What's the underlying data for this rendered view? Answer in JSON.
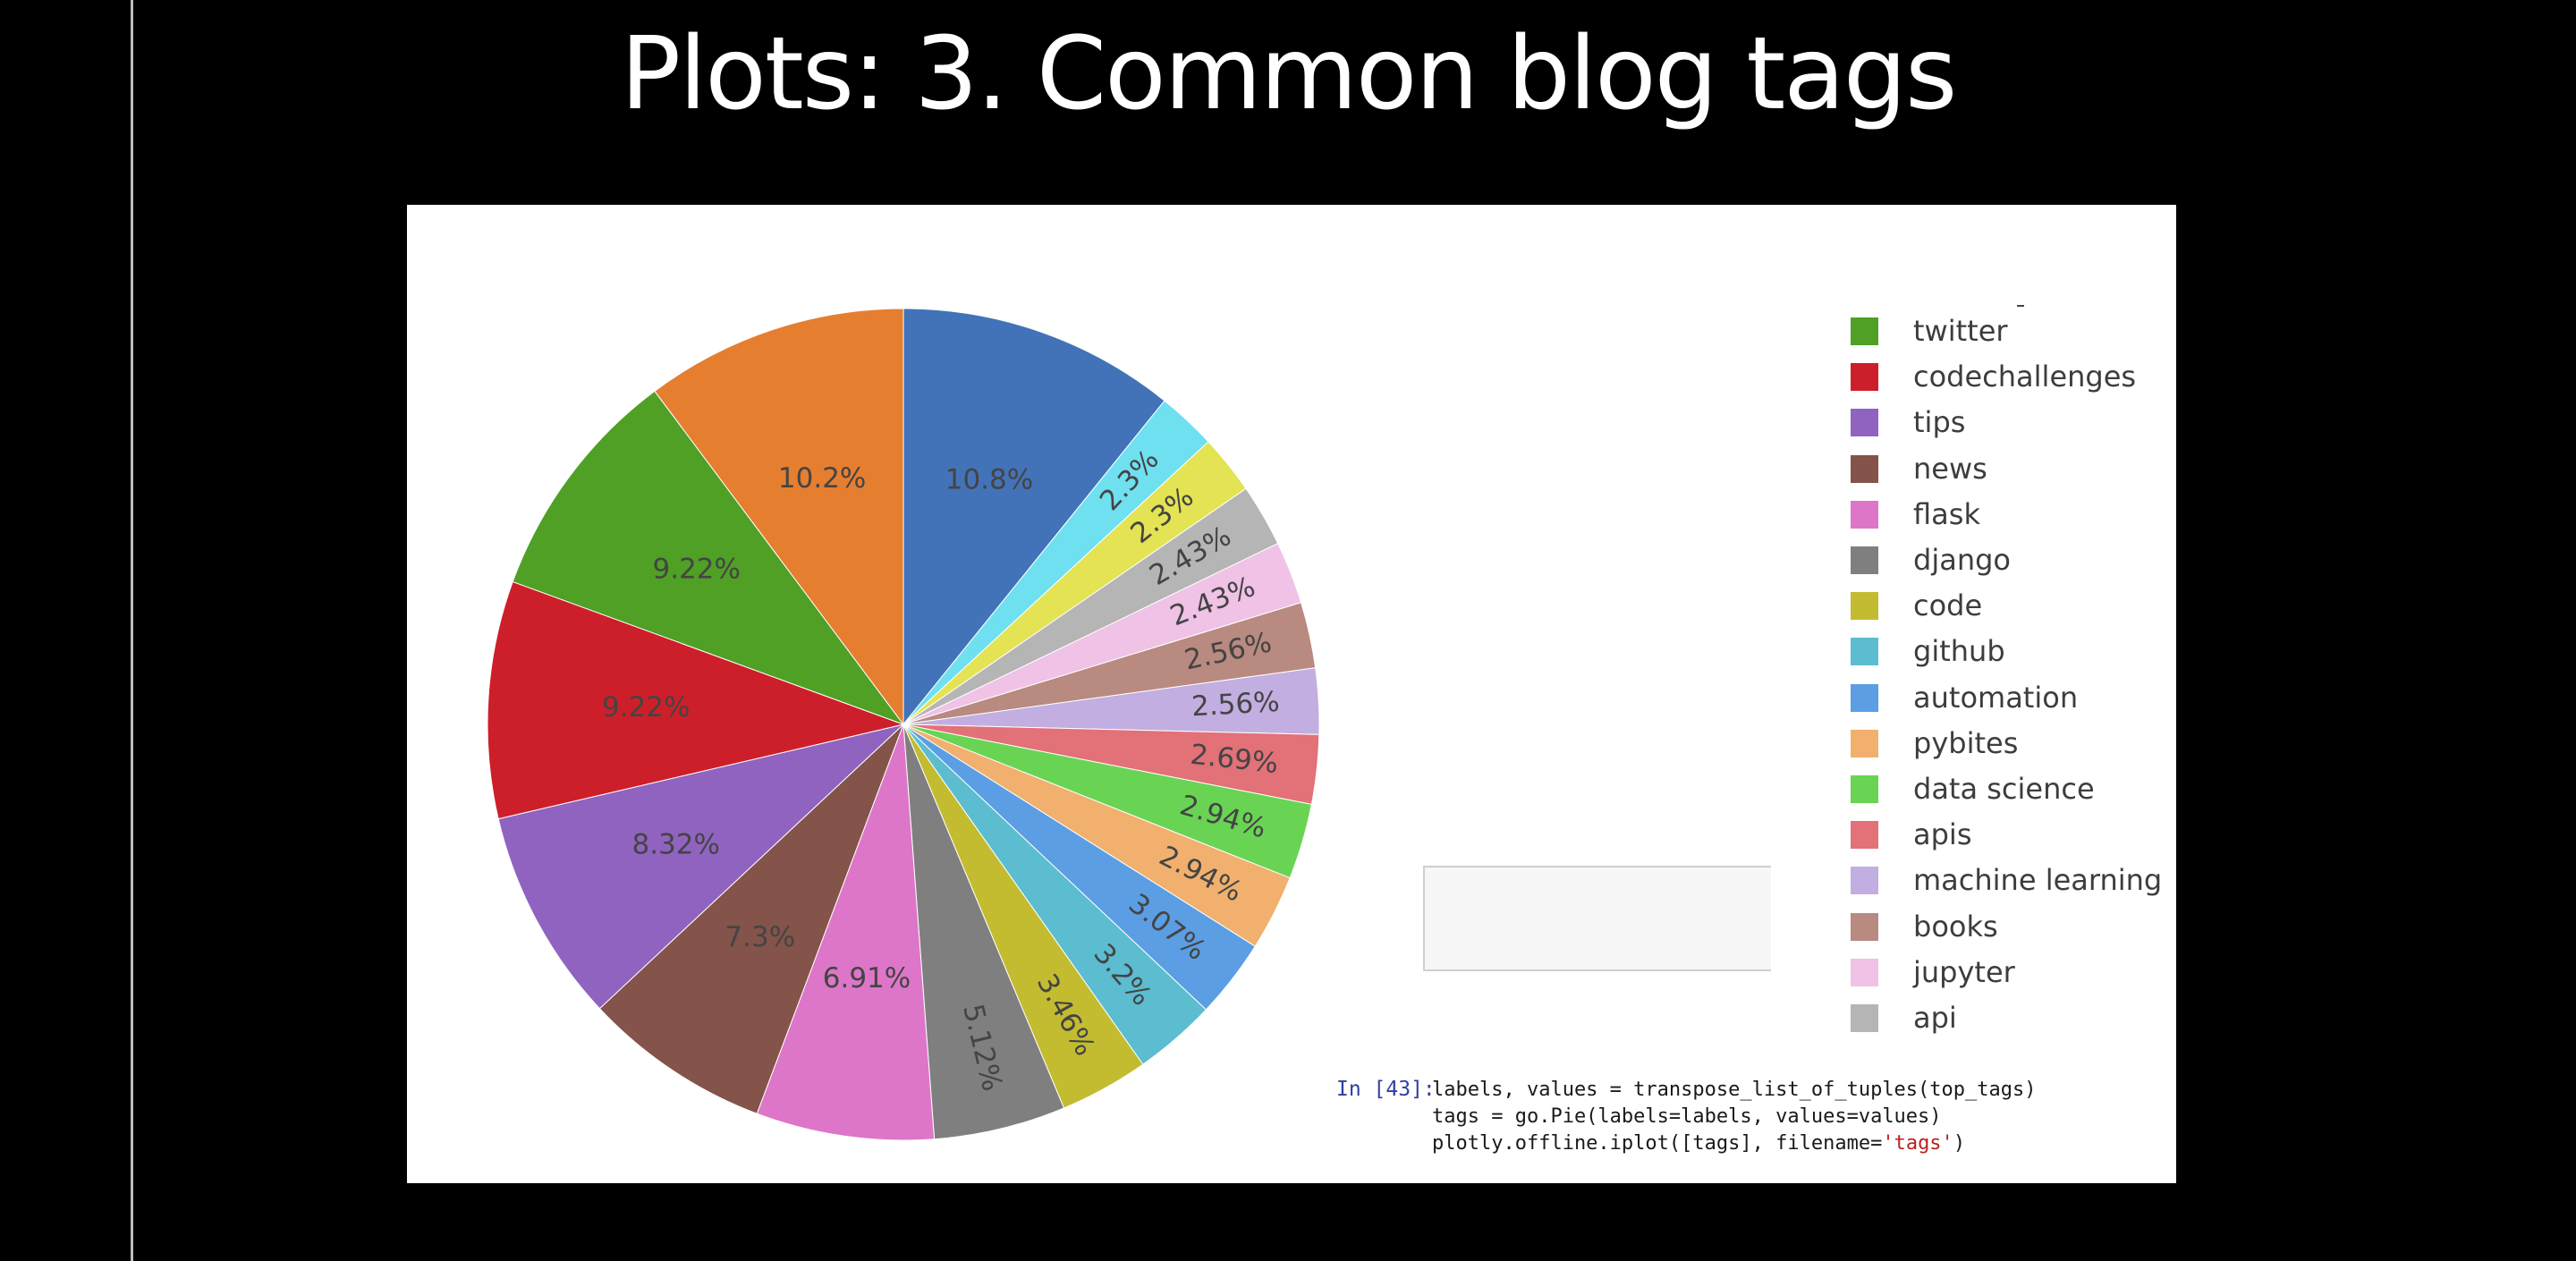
{
  "slide": {
    "title": "Plots: 3. Common blog tags"
  },
  "chart_data": {
    "type": "pie",
    "legend_position": "right",
    "slices": [
      {
        "label": "",
        "value": 10.8,
        "display": "10.8%",
        "color": "#4273b8"
      },
      {
        "label": "",
        "value": 2.3,
        "display": "2.3%",
        "color": "#6fe0ef"
      },
      {
        "label": "",
        "value": 2.3,
        "display": "2.3%",
        "color": "#e3e354"
      },
      {
        "label": "api",
        "value": 2.43,
        "display": "2.43%",
        "color": "#b5b5b5"
      },
      {
        "label": "jupyter",
        "value": 2.43,
        "display": "2.43%",
        "color": "#efc2e6"
      },
      {
        "label": "books",
        "value": 2.56,
        "display": "2.56%",
        "color": "#b88a80"
      },
      {
        "label": "machine learning",
        "value": 2.56,
        "display": "2.56%",
        "color": "#c2aee0"
      },
      {
        "label": "apis",
        "value": 2.69,
        "display": "2.69%",
        "color": "#e27178"
      },
      {
        "label": "data science",
        "value": 2.94,
        "display": "2.94%",
        "color": "#69d453"
      },
      {
        "label": "pybites",
        "value": 2.94,
        "display": "2.94%",
        "color": "#f1b06e"
      },
      {
        "label": "automation",
        "value": 3.07,
        "display": "3.07%",
        "color": "#5b9ee3"
      },
      {
        "label": "github",
        "value": 3.2,
        "display": "3.2%",
        "color": "#5bbdcf"
      },
      {
        "label": "code",
        "value": 3.46,
        "display": "3.46%",
        "color": "#c3bc31"
      },
      {
        "label": "django",
        "value": 5.12,
        "display": "5.12%",
        "color": "#7f7f7f"
      },
      {
        "label": "flask",
        "value": 6.91,
        "display": "6.91%",
        "color": "#dd76c8"
      },
      {
        "label": "news",
        "value": 7.3,
        "display": "7.3%",
        "color": "#84534a"
      },
      {
        "label": "tips",
        "value": 8.32,
        "display": "8.32%",
        "color": "#9063c0"
      },
      {
        "label": "codechallenges",
        "value": 9.22,
        "display": "9.22%",
        "color": "#cd1f2a"
      },
      {
        "label": "twitter",
        "value": 9.22,
        "display": "9.22%",
        "color": "#4fa024"
      },
      {
        "label": "",
        "value": 10.2,
        "display": "10.2%",
        "color": "#e67e30"
      }
    ],
    "legend": [
      {
        "label": "twitter",
        "color": "#4fa024"
      },
      {
        "label": "codechallenges",
        "color": "#cd1f2a"
      },
      {
        "label": "tips",
        "color": "#9063c0"
      },
      {
        "label": "news",
        "color": "#84534a"
      },
      {
        "label": "flask",
        "color": "#dd76c8"
      },
      {
        "label": "django",
        "color": "#7f7f7f"
      },
      {
        "label": "code",
        "color": "#c3bc31"
      },
      {
        "label": "github",
        "color": "#5bbdcf"
      },
      {
        "label": "automation",
        "color": "#5b9ee3"
      },
      {
        "label": "pybites",
        "color": "#f1b06e"
      },
      {
        "label": "data science",
        "color": "#69d453"
      },
      {
        "label": "apis",
        "color": "#e27178"
      },
      {
        "label": "machine learning",
        "color": "#c2aee0"
      },
      {
        "label": "books",
        "color": "#b88a80"
      },
      {
        "label": "jupyter",
        "color": "#efc2e6"
      },
      {
        "label": "api",
        "color": "#b5b5b5"
      }
    ]
  },
  "notebook_cell": {
    "prompt": "In [43]:",
    "line1": "labels, values = transpose_list_of_tuples(top_tags)",
    "line2": "tags = go.Pie(labels=labels, values=values)",
    "line3_prefix": "plotly.offline.iplot([tags], filename=",
    "line3_string": "'tags'",
    "line3_suffix": ")"
  }
}
